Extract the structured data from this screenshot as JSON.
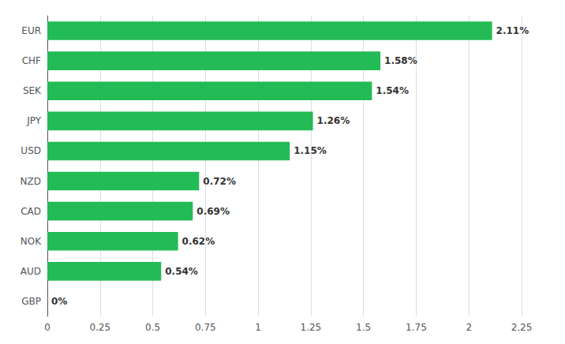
{
  "chart_data": {
    "type": "bar",
    "orientation": "horizontal",
    "categories": [
      "GBP",
      "AUD",
      "NOK",
      "CAD",
      "NZD",
      "USD",
      "JPY",
      "SEK",
      "CHF",
      "EUR"
    ],
    "values": [
      0.0,
      0.54,
      0.62,
      0.69,
      0.72,
      1.15,
      1.26,
      1.54,
      1.58,
      2.11
    ],
    "value_labels": [
      "0%",
      "0.54%",
      "0.62%",
      "0.69%",
      "0.72%",
      "1.15%",
      "1.26%",
      "1.54%",
      "1.58%",
      "2.11%"
    ],
    "data_labels": true,
    "color": "#22bb55",
    "xlim": [
      0,
      2.25
    ],
    "xticks": [
      0,
      0.25,
      0.5,
      0.75,
      1,
      1.25,
      1.5,
      1.75,
      2,
      2.25
    ],
    "grid": true
  }
}
